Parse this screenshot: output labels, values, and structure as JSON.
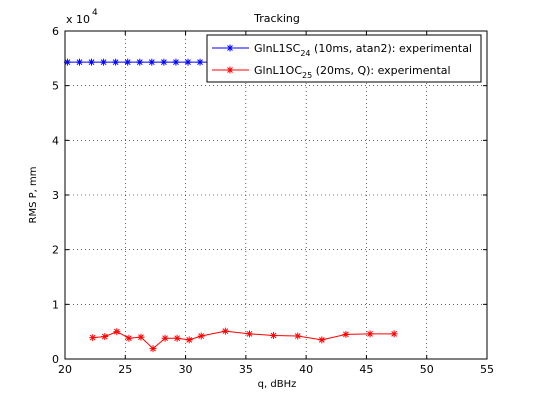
{
  "chart_data": {
    "type": "line",
    "title": "Tracking",
    "xlabel": "q, dBHz",
    "ylabel": "RMS P, mm",
    "xlim": [
      20,
      55
    ],
    "ylim": [
      0,
      60000
    ],
    "xticks": [
      20,
      25,
      30,
      35,
      40,
      45,
      50,
      55
    ],
    "yticks": [
      0,
      10000,
      20000,
      30000,
      40000,
      50000,
      60000
    ],
    "ytick_labels": [
      "0",
      "1",
      "2",
      "3",
      "4",
      "5",
      "6"
    ],
    "y_multiplier": {
      "base": "x 10",
      "exp": "4"
    },
    "grid": true,
    "legend_position": "top-right",
    "series": [
      {
        "name_main": "GlnL1SC",
        "name_sub": "24",
        "name_rest": " (10ms, atan2): experimental",
        "color": "#0000ff",
        "marker": "asterisk",
        "x": [
          20.2,
          21.2,
          22.2,
          23.2,
          24.2,
          25.2,
          26.2,
          27.2,
          28.2,
          29.2,
          30.2,
          31.2,
          32.2,
          33.2,
          34.2,
          35.2,
          36.2,
          37.2
        ],
        "y": [
          54300,
          54300,
          54300,
          54300,
          54300,
          54300,
          54300,
          54300,
          54300,
          54300,
          54300,
          54300,
          54300,
          54300,
          54300,
          54300,
          54300,
          54300
        ]
      },
      {
        "name_main": "GlnL1OC",
        "name_sub": "25",
        "name_rest": " (20ms, Q): experimental",
        "color": "#ff0000",
        "marker": "asterisk",
        "x": [
          22.3,
          23.3,
          24.3,
          25.3,
          26.3,
          27.3,
          28.3,
          29.3,
          30.3,
          31.3,
          33.3,
          35.3,
          37.3,
          39.3,
          41.3,
          43.3,
          45.3,
          47.3
        ],
        "y": [
          3900,
          4100,
          5000,
          3800,
          4000,
          1900,
          3800,
          3800,
          3500,
          4200,
          5100,
          4600,
          4300,
          4200,
          3500,
          4500,
          4600,
          4600
        ]
      }
    ]
  }
}
